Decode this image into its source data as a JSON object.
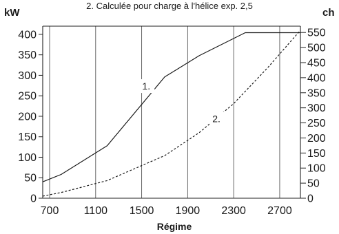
{
  "chart_data": {
    "type": "line",
    "subtitle": "2. Calculée pour charge à l'hélice exp. 2,5",
    "xlabel": "Régime",
    "ylabel_left": "kW",
    "ylabel_right": "ch",
    "xlim": [
      640,
      2880
    ],
    "ylim_left": [
      0,
      420
    ],
    "ylim_right_ticks": [
      0,
      50,
      100,
      150,
      200,
      250,
      300,
      350,
      400,
      450,
      500,
      550
    ],
    "x_ticks": [
      700,
      1100,
      1500,
      1900,
      2300,
      2700
    ],
    "y_ticks_left": [
      0,
      50,
      100,
      150,
      200,
      250,
      300,
      350,
      400
    ],
    "right_axis_scale_kw_per_ch": 0.7355,
    "grid": "vertical",
    "series": [
      {
        "name": "1.",
        "style": "solid",
        "points": [
          [
            640,
            40
          ],
          [
            800,
            58
          ],
          [
            1200,
            128
          ],
          [
            1700,
            296
          ],
          [
            2000,
            348
          ],
          [
            2400,
            404
          ],
          [
            2880,
            404
          ]
        ]
      },
      {
        "name": "2.",
        "style": "dashed",
        "points": [
          [
            640,
            5
          ],
          [
            800,
            14
          ],
          [
            1200,
            43
          ],
          [
            1700,
            104
          ],
          [
            2000,
            160
          ],
          [
            2300,
            231
          ],
          [
            2600,
            320
          ],
          [
            2880,
            410
          ]
        ]
      }
    ],
    "annotations": [
      {
        "text": "1.",
        "x": 1540,
        "y": 272
      },
      {
        "text": "2.",
        "x": 2150,
        "y": 192
      }
    ]
  },
  "colors": {
    "line": "#1a1a1a",
    "grid": "#555555",
    "axis": "#222222",
    "background": "#ffffff"
  }
}
